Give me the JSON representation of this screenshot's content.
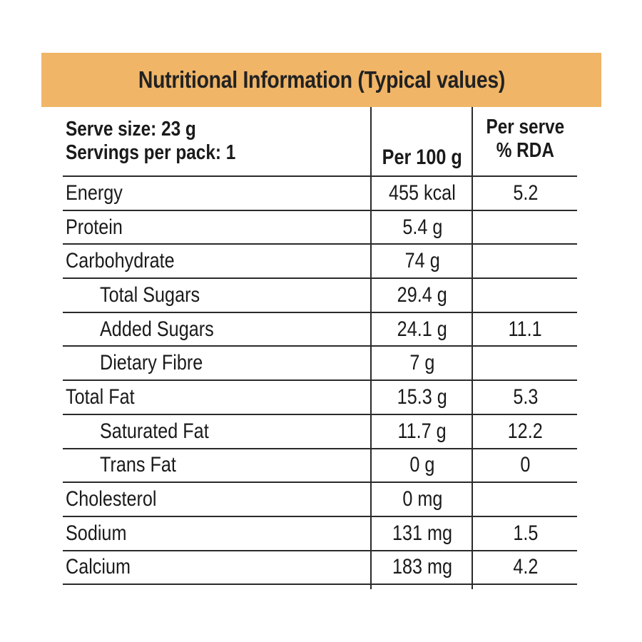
{
  "title": "Nutritional Information (Typical values)",
  "header": {
    "serve_size": "Serve size: 23 g",
    "servings": "Servings per pack: 1",
    "per100_label": "Per 100 g",
    "per_serve_line1": "Per serve",
    "per_serve_line2": "% RDA"
  },
  "rows": [
    {
      "label": "Energy",
      "per100": "455 kcal",
      "rda": "5.2"
    },
    {
      "label": "Protein",
      "per100": "5.4 g",
      "rda": ""
    },
    {
      "label": "Carbohydrate",
      "per100": "74 g",
      "rda": ""
    },
    {
      "label": "Total Sugars",
      "per100": "29.4 g",
      "rda": ""
    },
    {
      "label": "Added Sugars",
      "per100": "24.1 g",
      "rda": "11.1"
    },
    {
      "label": "Dietary Fibre",
      "per100": "7 g",
      "rda": ""
    },
    {
      "label": "Total Fat",
      "per100": "15.3 g",
      "rda": "5.3"
    },
    {
      "label": "Saturated Fat",
      "per100": "11.7 g",
      "rda": "12.2"
    },
    {
      "label": "Trans Fat",
      "per100": "0 g",
      "rda": "0"
    },
    {
      "label": "Cholesterol",
      "per100": "0 mg",
      "rda": ""
    },
    {
      "label": "Sodium",
      "per100": "131 mg",
      "rda": "1.5"
    },
    {
      "label": "Calcium",
      "per100": "183 mg",
      "rda": "4.2"
    }
  ],
  "colors": {
    "banner": "#f0b567",
    "text": "#1a1a1a",
    "rule": "#2a2a2a"
  }
}
